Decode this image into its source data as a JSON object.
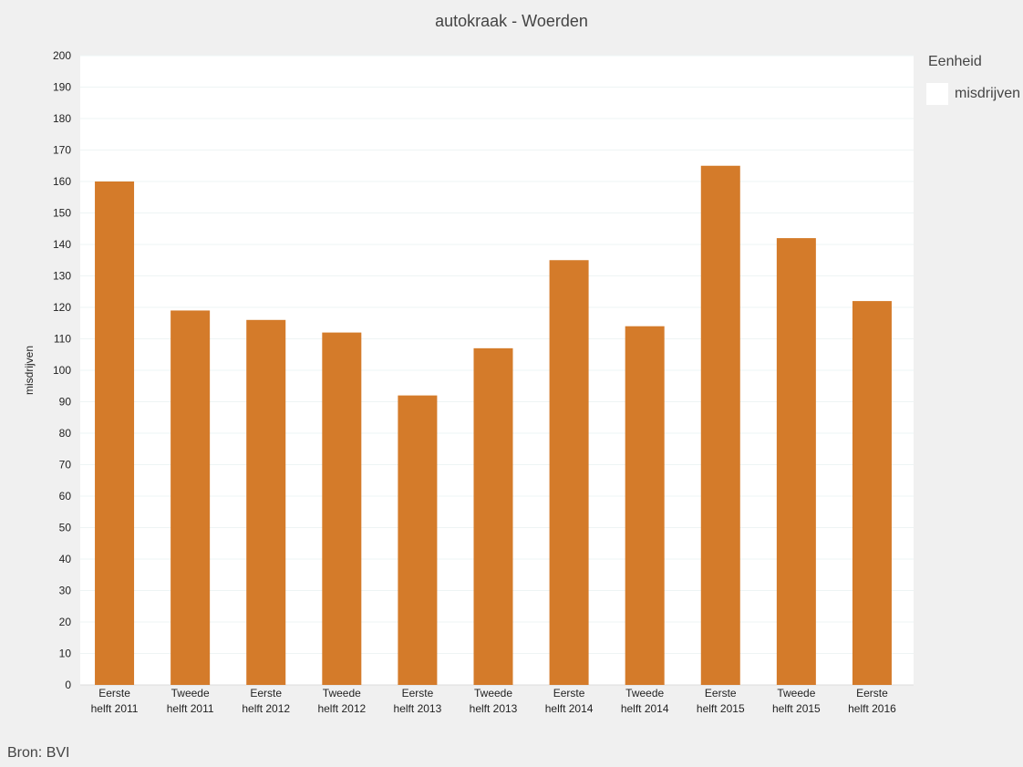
{
  "chart_data": {
    "type": "bar",
    "title": "autokraak - Woerden",
    "ylabel": "misdrijven",
    "xlabel": "",
    "ylim": [
      0,
      200
    ],
    "yticks": [
      0,
      10,
      20,
      30,
      40,
      50,
      60,
      70,
      80,
      90,
      100,
      110,
      120,
      130,
      140,
      150,
      160,
      170,
      180,
      190,
      200
    ],
    "categories": [
      [
        "Eerste",
        "helft 2011"
      ],
      [
        "Tweede",
        "helft 2011"
      ],
      [
        "Eerste",
        "helft 2012"
      ],
      [
        "Tweede",
        "helft 2012"
      ],
      [
        "Eerste",
        "helft 2013"
      ],
      [
        "Tweede",
        "helft 2013"
      ],
      [
        "Eerste",
        "helft 2014"
      ],
      [
        "Tweede",
        "helft 2014"
      ],
      [
        "Eerste",
        "helft 2015"
      ],
      [
        "Tweede",
        "helft 2015"
      ],
      [
        "Eerste",
        "helft 2016"
      ]
    ],
    "series": [
      {
        "name": "misdrijven",
        "values": [
          160,
          119,
          116,
          112,
          92,
          107,
          135,
          114,
          165,
          142,
          122
        ],
        "color": "#d47b2a"
      }
    ],
    "legend_title": "Eenheid",
    "legend_placement": "right",
    "grid": true,
    "source": "Bron: BVI"
  }
}
